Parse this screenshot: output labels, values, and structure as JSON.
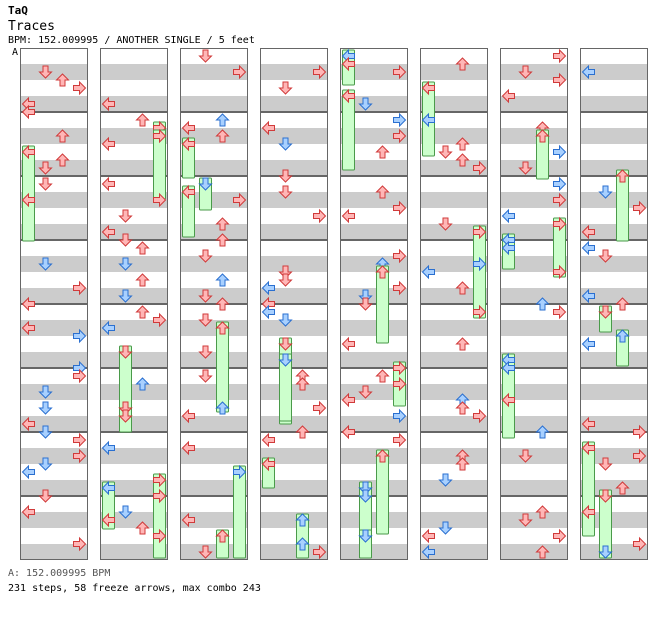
{
  "header": {
    "artist": "TaQ",
    "title": "Traces",
    "info": "BPM: 152.009995 / ANOTHER SINGLE / 5 feet",
    "segment_label": "A"
  },
  "footer": {
    "bpm_line": "A: 152.009995 BPM",
    "stats_line": "231 steps, 58 freeze arrows, max combo 243"
  },
  "colors": {
    "stripe": "#cccccc",
    "border": "#666666",
    "arrow_red_fill": "#ffb6b6",
    "arrow_red_stroke": "#d03a3a",
    "arrow_blue_fill": "#a8d0ff",
    "arrow_blue_stroke": "#2a6fd0",
    "freeze_fill": "#ccffcc",
    "freeze_stroke": "#4a9a4a"
  },
  "chart_data": {
    "type": "stepchart",
    "lanes": [
      "left",
      "down",
      "up",
      "right"
    ],
    "notes": [
      [
        [
          0,
          2,
          0.3,
          "L",
          3,
          "r"
        ],
        [
          0,
          2,
          0.7,
          "D",
          2,
          "r"
        ],
        [
          0,
          3,
          1.1,
          "R",
          0,
          "b"
        ],
        [
          0,
          3,
          1.6,
          "U",
          1,
          "r"
        ],
        [
          0,
          4,
          0.4,
          "D",
          2,
          "r"
        ],
        [
          0,
          4,
          1.2,
          "R",
          1,
          "r"
        ],
        [
          0,
          5,
          0.3,
          "L",
          1,
          "r"
        ],
        [
          0,
          5,
          0.8,
          "U",
          2,
          "r"
        ],
        [
          0,
          6,
          0.2,
          "U",
          2,
          "b"
        ],
        [
          0,
          6,
          0.9,
          "D",
          0,
          "r"
        ],
        [
          0,
          6,
          1.5,
          "R",
          3,
          "r"
        ],
        [
          0,
          7,
          0.5,
          "L",
          1,
          "r"
        ],
        [
          0,
          7,
          1.3,
          "D",
          3,
          "b"
        ],
        [
          1,
          2,
          0.5,
          "L",
          2,
          "r"
        ],
        [
          1,
          3,
          0.2,
          "U",
          0,
          "r"
        ],
        [
          1,
          4,
          0.7,
          "D",
          2,
          "b"
        ],
        [
          1,
          5,
          1.0,
          "R",
          3,
          "r"
        ],
        [
          1,
          6,
          0.3,
          "L",
          1,
          "r"
        ],
        [
          1,
          7,
          0.8,
          "U",
          2,
          "r"
        ],
        [
          2,
          3,
          1.3,
          "R",
          1,
          "b"
        ],
        [
          2,
          4,
          0.5,
          "D",
          0,
          "r"
        ],
        [
          2,
          5,
          0.9,
          "L",
          3,
          "r"
        ],
        [
          2,
          6,
          0.4,
          "U",
          2,
          "r"
        ],
        [
          2,
          7,
          1.1,
          "R",
          0,
          "b"
        ],
        [
          3,
          3,
          0.2,
          "D",
          3,
          "r"
        ],
        [
          3,
          4,
          1.4,
          "L",
          1,
          "r"
        ],
        [
          3,
          5,
          0.6,
          "U",
          2,
          "b"
        ],
        [
          3,
          6,
          1.0,
          "R",
          0,
          "r"
        ],
        [
          3,
          7,
          0.3,
          "D",
          3,
          "r"
        ],
        [
          4,
          2,
          0.9,
          "L",
          2,
          "r"
        ],
        [
          4,
          3,
          0.5,
          "U",
          1,
          "r"
        ],
        [
          4,
          4,
          1.2,
          "R",
          3,
          "b"
        ],
        [
          4,
          5,
          0.7,
          "D",
          0,
          "r"
        ],
        [
          4,
          6,
          0.2,
          "L",
          2,
          "r"
        ],
        [
          4,
          7,
          1.5,
          "U",
          1,
          "r"
        ],
        [
          5,
          2,
          0.4,
          "R",
          3,
          "r"
        ],
        [
          5,
          3,
          0.8,
          "D",
          0,
          "b"
        ],
        [
          5,
          4,
          0.3,
          "L",
          2,
          "r"
        ],
        [
          5,
          5,
          1.2,
          "U",
          1,
          "r"
        ],
        [
          5,
          6,
          0.7,
          "R",
          3,
          "r"
        ],
        [
          5,
          7,
          0.2,
          "D",
          0,
          "r"
        ],
        [
          6,
          2,
          1.1,
          "L",
          1,
          "b"
        ],
        [
          6,
          3,
          0.6,
          "U",
          2,
          "r"
        ],
        [
          6,
          4,
          0.2,
          "R",
          0,
          "r"
        ],
        [
          6,
          5,
          0.9,
          "D",
          3,
          "r"
        ],
        [
          6,
          6,
          1.3,
          "L",
          2,
          "b"
        ],
        [
          6,
          7,
          0.5,
          "U",
          1,
          "r"
        ]
      ]
    ]
  }
}
